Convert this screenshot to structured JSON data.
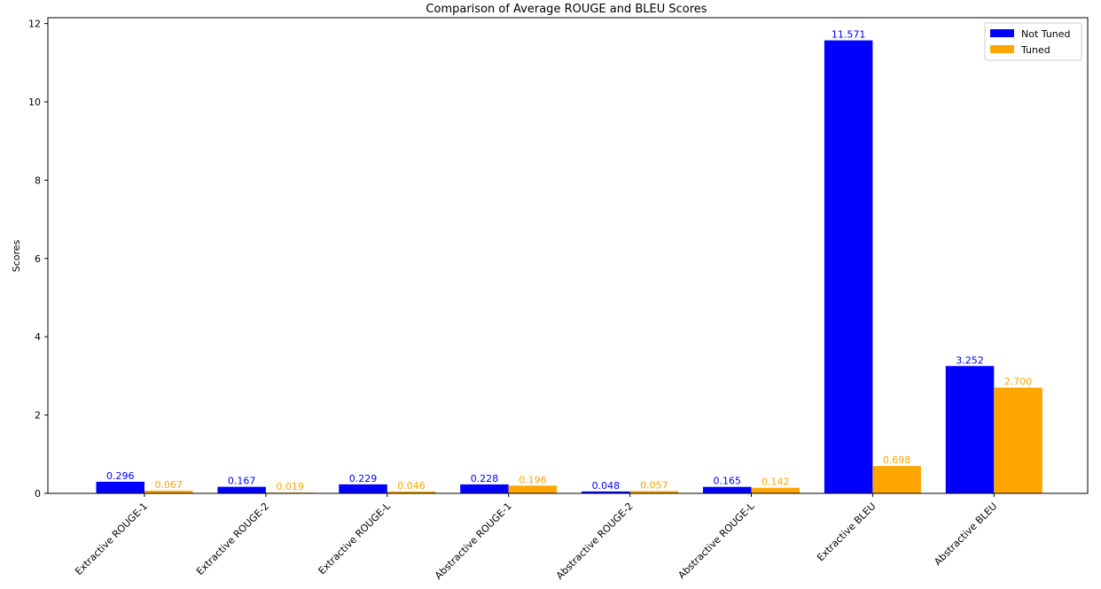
{
  "chart_data": {
    "type": "bar",
    "title": "Comparison of Average ROUGE and BLEU Scores",
    "xlabel": "",
    "ylabel": "Scores",
    "ylim": [
      0,
      12.15
    ],
    "yticks": [
      0,
      2,
      4,
      6,
      8,
      10,
      12
    ],
    "grid": false,
    "legend_position": "top-right",
    "categories": [
      "Extractive ROUGE-1",
      "Extractive ROUGE-2",
      "Extractive ROUGE-L",
      "Abstractive ROUGE-1",
      "Abstractive ROUGE-2",
      "Abstractive ROUGE-L",
      "Extractive BLEU",
      "Abstractive BLEU"
    ],
    "series": [
      {
        "name": "Not Tuned",
        "color": "#0000ff",
        "values": [
          0.296,
          0.167,
          0.229,
          0.228,
          0.048,
          0.165,
          11.571,
          3.252
        ],
        "labels": [
          "0.296",
          "0.167",
          "0.229",
          "0.228",
          "0.048",
          "0.165",
          "11.571",
          "3.252"
        ]
      },
      {
        "name": "Tuned",
        "color": "#ffa500",
        "values": [
          0.067,
          0.019,
          0.046,
          0.196,
          0.057,
          0.142,
          0.698,
          2.7
        ],
        "labels": [
          "0.067",
          "0.019",
          "0.046",
          "0.196",
          "0.057",
          "0.142",
          "0.698",
          "2.700"
        ]
      }
    ]
  }
}
